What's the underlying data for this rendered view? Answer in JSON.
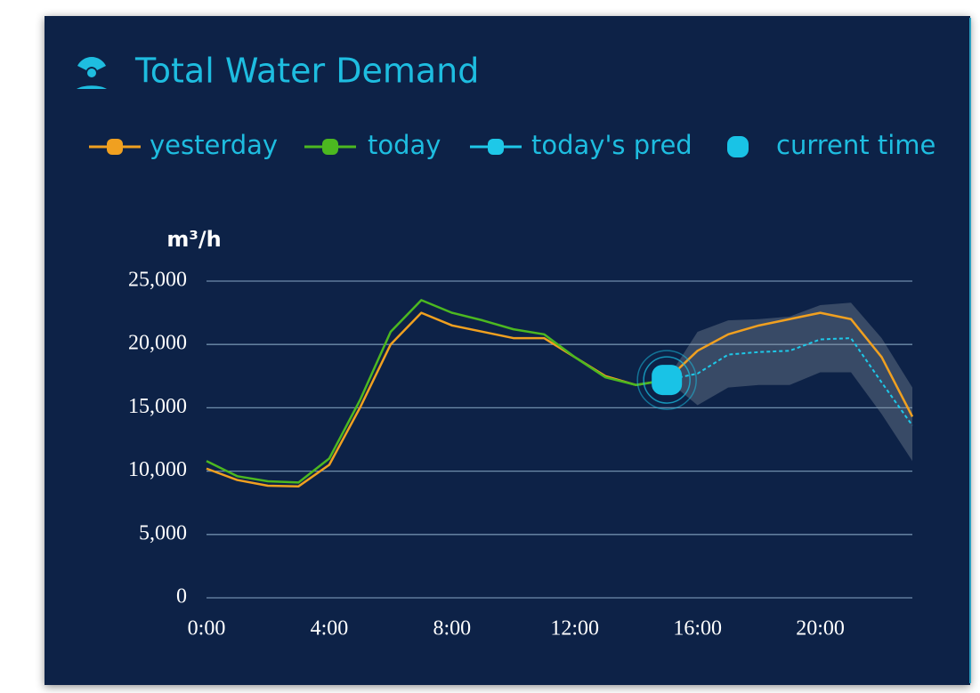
{
  "chart_data": {
    "type": "line",
    "title": "Total Water Demand",
    "y_label": "m³/h",
    "x": [
      0,
      1,
      2,
      3,
      4,
      5,
      6,
      7,
      8,
      9,
      10,
      11,
      12,
      13,
      14,
      15,
      16,
      17,
      18,
      19,
      20,
      21,
      22,
      23
    ],
    "xlim": [
      0,
      23
    ],
    "xticks": [
      {
        "value": 0,
        "label": "0:00"
      },
      {
        "value": 4,
        "label": "4:00"
      },
      {
        "value": 8,
        "label": "8:00"
      },
      {
        "value": 12,
        "label": "12:00"
      },
      {
        "value": 16,
        "label": "16:00"
      },
      {
        "value": 20,
        "label": "20:00"
      }
    ],
    "ylim": [
      0,
      25000
    ],
    "yticks": [
      0,
      {
        "value": 5000,
        "label": "5,000"
      },
      {
        "value": 10000,
        "label": "10,000"
      },
      {
        "value": 15000,
        "label": "15,000"
      },
      {
        "value": 20000,
        "label": "20,000"
      },
      {
        "value": 25000,
        "label": "25,000"
      }
    ],
    "grid": true,
    "series": [
      {
        "name": "yesterday",
        "color": "#f0a020",
        "values": [
          10200,
          9300,
          8850,
          8800,
          10500,
          15000,
          20000,
          22500,
          21500,
          21000,
          20500,
          20500,
          19000,
          17500,
          16800,
          17200,
          19500,
          20800,
          21500,
          22000,
          22500,
          22000,
          19000,
          14300
        ]
      },
      {
        "name": "today",
        "color": "#4cb820",
        "values": [
          10800,
          9600,
          9200,
          9100,
          11000,
          15600,
          21000,
          23500,
          22500,
          21900,
          21200,
          20800,
          19000,
          17400,
          16800,
          17200,
          null,
          null,
          null,
          null,
          null,
          null,
          null,
          null
        ]
      },
      {
        "name": "today's pred",
        "color": "#1ec8e8",
        "dashed": true,
        "values": [
          null,
          null,
          null,
          null,
          null,
          null,
          null,
          null,
          null,
          null,
          null,
          null,
          null,
          null,
          null,
          17200,
          17700,
          19200,
          19400,
          19500,
          20400,
          20500,
          17000,
          13600
        ]
      }
    ],
    "band": {
      "color": "#8a94a0",
      "upper": [
        null,
        null,
        null,
        null,
        null,
        null,
        null,
        null,
        null,
        null,
        null,
        null,
        null,
        null,
        null,
        17200,
        21000,
        21900,
        22000,
        22200,
        23100,
        23300,
        20500,
        16600
      ],
      "lower": [
        null,
        null,
        null,
        null,
        null,
        null,
        null,
        null,
        null,
        null,
        null,
        null,
        null,
        null,
        null,
        17200,
        15200,
        16600,
        16800,
        16800,
        17800,
        17800,
        14500,
        10800
      ]
    },
    "current_time": {
      "name": "current time",
      "color": "#19c3e6",
      "x": 15,
      "value": 17200
    }
  }
}
